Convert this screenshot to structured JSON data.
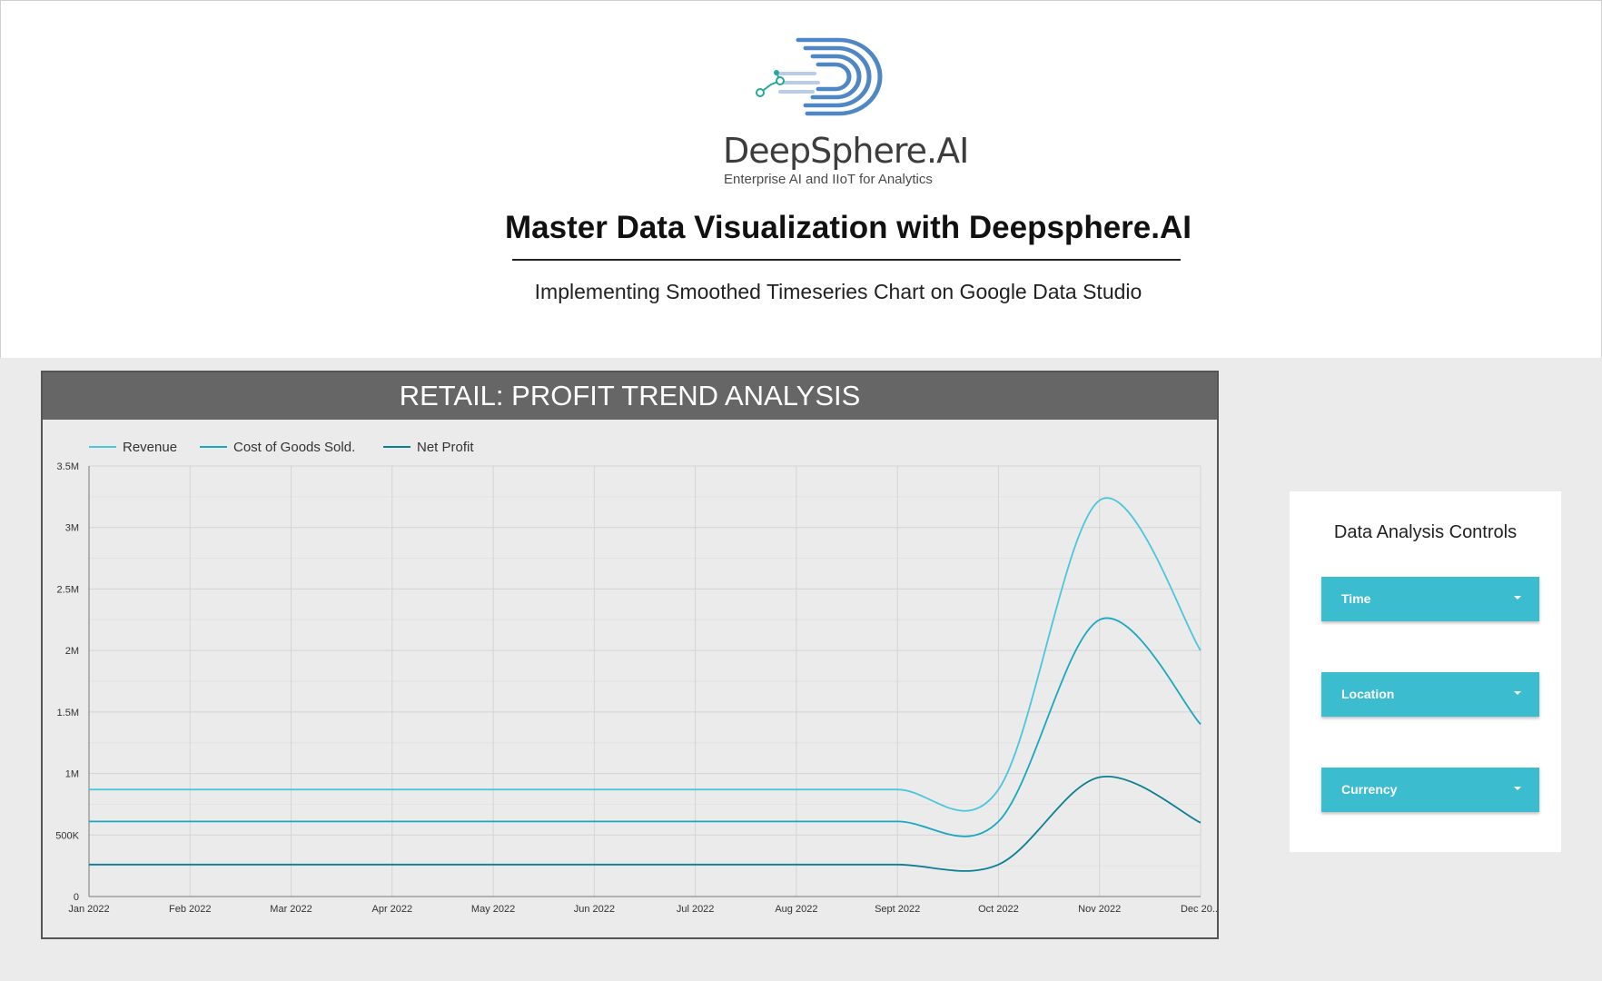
{
  "brand": {
    "name": "DeepSphere.AI",
    "tagline": "Enterprise AI and IIoT for Analytics",
    "logo_icon": "deepsphere-logo-icon",
    "colors": {
      "primary": "#4f86c6",
      "light": "#b9cce8",
      "node": "#27a99a"
    }
  },
  "page": {
    "title": "Master Data Visualization with Deepsphere.AI",
    "subtitle": "Implementing Smoothed Timeseries Chart on Google Data Studio"
  },
  "chart_data": {
    "type": "line",
    "title": "RETAIL: PROFIT TREND ANALYSIS",
    "smoothed": true,
    "x": [
      "Jan 2022",
      "Feb 2022",
      "Mar 2022",
      "Apr 2022",
      "May 2022",
      "Jun 2022",
      "Jul 2022",
      "Aug 2022",
      "Sept 2022",
      "Oct 2022",
      "Nov 2022",
      "Dec 20..."
    ],
    "series": [
      {
        "name": "Revenue",
        "color": "#4cc6dc",
        "values": [
          870000,
          870000,
          870000,
          870000,
          870000,
          870000,
          870000,
          870000,
          870000,
          870000,
          3220000,
          2000000
        ]
      },
      {
        "name": "Cost of Goods Sold.",
        "color": "#1aa7c0",
        "values": [
          610000,
          610000,
          610000,
          610000,
          610000,
          610000,
          610000,
          610000,
          610000,
          610000,
          2250000,
          1400000
        ]
      },
      {
        "name": "Net Profit",
        "color": "#0d7f93",
        "values": [
          260000,
          260000,
          260000,
          260000,
          260000,
          260000,
          260000,
          260000,
          260000,
          260000,
          970000,
          600000
        ]
      }
    ],
    "ylim": [
      0,
      3500000
    ],
    "yticks": [
      0,
      500000,
      1000000,
      1500000,
      2000000,
      2500000,
      3000000,
      3500000
    ],
    "ytick_labels": [
      "0",
      "500K",
      "1M",
      "1.5M",
      "2M",
      "2.5M",
      "3M",
      "3.5M"
    ],
    "grid": true,
    "legend": "top-left"
  },
  "controls": {
    "title": "Data Analysis Controls",
    "items": [
      {
        "label": "Time",
        "icon": "dropdown-caret-icon"
      },
      {
        "label": "Location",
        "icon": "dropdown-caret-icon"
      },
      {
        "label": "Currency",
        "icon": "dropdown-caret-icon"
      }
    ],
    "accent": "#3bbccf"
  }
}
